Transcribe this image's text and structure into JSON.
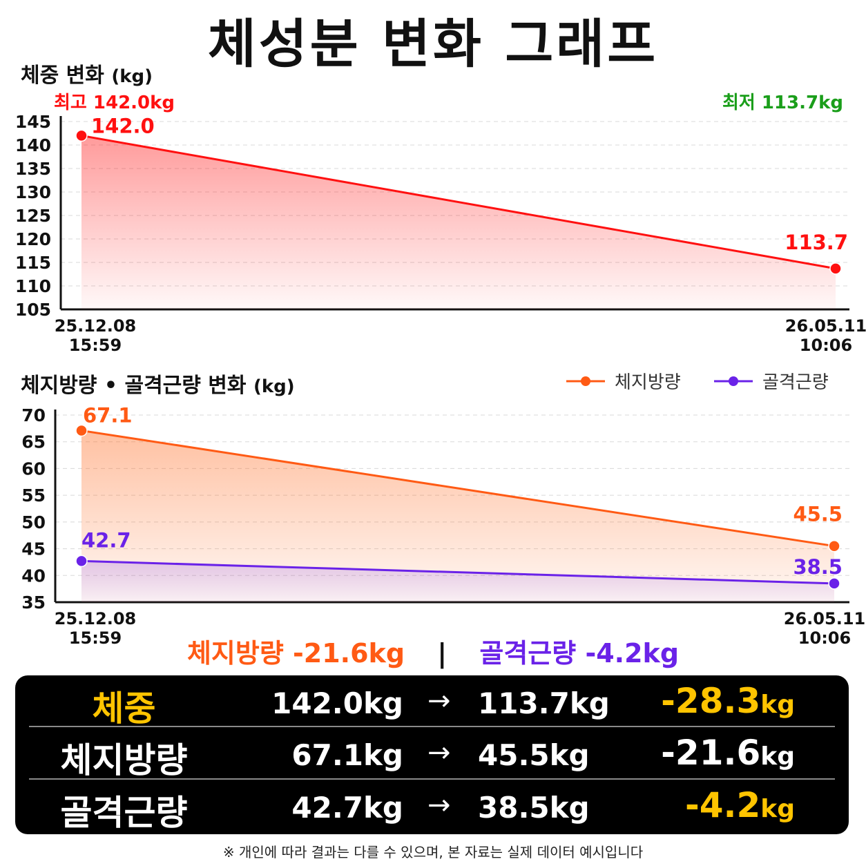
{
  "title": "체성분 변화 그래프",
  "colors": {
    "weight": "#ff1010",
    "fat": "#ff5a14",
    "muscle": "#6a22e8",
    "highlight": "#ffc400",
    "min_label": "#1a9e1a"
  },
  "chart_data": [
    {
      "type": "area",
      "title": "체중 변화",
      "title_unit": "(kg)",
      "x": [
        "25.12.08 15:59",
        "26.05.11 10:06"
      ],
      "x_tick_dates": [
        "25.12.08",
        "26.05.11"
      ],
      "x_tick_times": [
        "15:59",
        "10:06"
      ],
      "series": [
        {
          "values": [
            142.0,
            113.7
          ],
          "data_labels": [
            "142.0",
            "113.7"
          ]
        }
      ],
      "ylim": [
        105,
        145
      ],
      "yticks": [
        105,
        110,
        115,
        120,
        125,
        130,
        135,
        140,
        145
      ],
      "grid": true,
      "max_label": "최고 142.0kg",
      "min_label": "최저 113.7kg"
    },
    {
      "type": "area",
      "title": "체지방량 • 골격근량 변화",
      "title_unit": "(kg)",
      "x": [
        "25.12.08 15:59",
        "26.05.11 10:06"
      ],
      "x_tick_dates": [
        "25.12.08",
        "26.05.11"
      ],
      "x_tick_times": [
        "15:59",
        "10:06"
      ],
      "series": [
        {
          "name": "체지방량",
          "values": [
            67.1,
            45.5
          ],
          "data_labels": [
            "67.1",
            "45.5"
          ]
        },
        {
          "name": "골격근량",
          "values": [
            42.7,
            38.5
          ],
          "data_labels": [
            "42.7",
            "38.5"
          ]
        }
      ],
      "ylim": [
        35,
        70
      ],
      "yticks": [
        35,
        40,
        45,
        50,
        55,
        60,
        65,
        70
      ],
      "grid": true,
      "legend_position": "top-right"
    }
  ],
  "summary": {
    "fat_change": "체지방량 -21.6kg",
    "separator": "|",
    "muscle_change": "골격근량 -4.2kg"
  },
  "table": {
    "arrow": "→",
    "rows": [
      {
        "label": "체중",
        "from": "142.0kg",
        "to": "113.7kg",
        "delta": "-28.3",
        "delta_unit": "kg"
      },
      {
        "label": "체지방량",
        "from": "67.1kg",
        "to": "45.5kg",
        "delta": "-21.6",
        "delta_unit": "kg"
      },
      {
        "label": "골격근량",
        "from": "42.7kg",
        "to": "38.5kg",
        "delta": "-4.2",
        "delta_unit": "kg"
      }
    ]
  },
  "footnote": "※ 개인에 따라 결과는 다를 수 있으며, 본 자료는 실제 데이터 예시입니다"
}
